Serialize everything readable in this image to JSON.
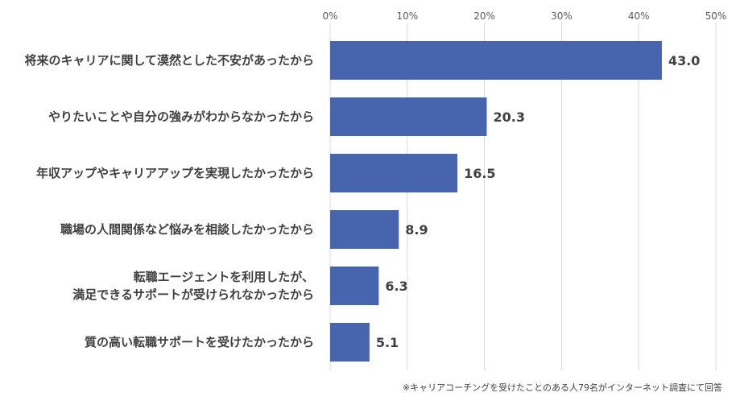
{
  "chart_data": {
    "type": "bar",
    "orientation": "horizontal",
    "categories": [
      [
        "将来のキャリアに関して漠然とした不安があったから"
      ],
      [
        "やりたいことや自分の強みがわからなかったから"
      ],
      [
        "年収アップやキャリアアップを実現したかったから"
      ],
      [
        "職場の人間関係など悩みを相談したかったから"
      ],
      [
        "転職エージェントを利用したが、",
        "満足できるサポートが受けられなかったから"
      ],
      [
        "質の高い転職サポートを受けたかったから"
      ]
    ],
    "values": [
      43.0,
      20.3,
      16.5,
      8.9,
      6.3,
      5.1
    ],
    "value_labels": [
      "43.0",
      "20.3",
      "16.5",
      "8.9",
      "6.3",
      "5.1"
    ],
    "xlim": [
      0,
      50
    ],
    "xticks": [
      "0%",
      "10%",
      "20%",
      "30%",
      "40%",
      "50%"
    ],
    "grid": true,
    "bar_color": "#4764ae",
    "grid_color": "#d9d9d9",
    "note": "※キャリアコーチングを受けたことのある人79名がインターネット調査にて回答"
  }
}
